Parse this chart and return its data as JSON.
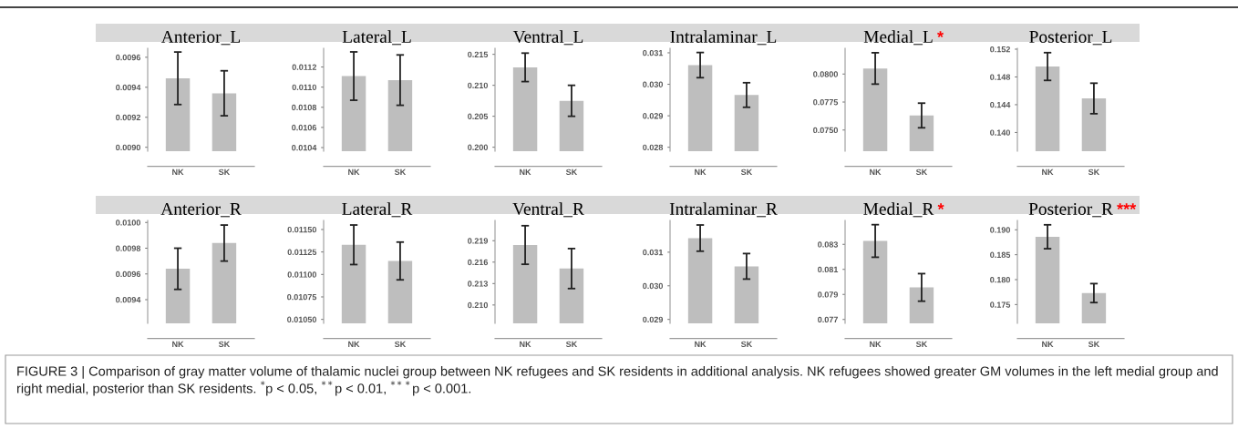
{
  "chart_data": [
    {
      "type": "bar",
      "title": "Anterior_L",
      "categories": [
        "NK",
        "SK"
      ],
      "values": [
        0.00946,
        0.00936
      ],
      "errors": [
        0.000175,
        0.00015
      ],
      "color": "#bebebe",
      "ylim": [
        0.008974,
        0.00966
      ],
      "yticks": [
        {
          "value": 0.009,
          "label": "0.0090"
        },
        0.0092,
        0.0094,
        0.0096
      ]
    },
    {
      "type": "bar",
      "title": "Lateral_L",
      "categories": [
        "NK",
        "SK"
      ],
      "values": [
        0.01111,
        0.01107
      ],
      "errors": [
        0.00024,
        0.00025
      ],
      "color": "#bebebe",
      "ylim": [
        0.010364,
        0.011386
      ],
      "yticks": [
        0.0104,
        0.0106,
        0.0108,
        {
          "value": 0.011,
          "label": "0.0110"
        },
        0.0112
      ]
    },
    {
      "type": "bar",
      "title": "Ventral_L",
      "categories": [
        "NK",
        "SK"
      ],
      "values": [
        0.2129,
        0.2075
      ],
      "errors": [
        0.0023,
        0.0025
      ],
      "color": "#bebebe",
      "ylim": [
        0.19936,
        0.21598
      ],
      "yticks": [
        {
          "value": 0.2,
          "label": "0.200"
        },
        0.205,
        {
          "value": 0.21,
          "label": "0.210"
        },
        0.215
      ]
    },
    {
      "type": "bar",
      "title": "Intralaminar_L",
      "categories": [
        "NK",
        "SK"
      ],
      "values": [
        0.03061,
        0.02966
      ],
      "errors": [
        0.0004,
        0.00039
      ],
      "color": "#bebebe",
      "ylim": [
        0.027875,
        0.031144
      ],
      "yticks": [
        0.028,
        0.029,
        {
          "value": 0.03,
          "label": "0.030"
        },
        0.031
      ]
    },
    {
      "type": "bar",
      "title": "Medial_L",
      "annotations": [
        "*"
      ],
      "categories": [
        "NK",
        "SK"
      ],
      "values": [
        0.0805,
        0.0763
      ],
      "errors": [
        0.0014,
        0.0011
      ],
      "color": "#bebebe",
      "ylim": [
        0.07311,
        0.0823
      ],
      "yticks": [
        {
          "value": 0.075,
          "label": "0.0750"
        },
        0.0775,
        {
          "value": 0.08,
          "label": "0.0800"
        }
      ]
    },
    {
      "type": "bar",
      "title": "Posterior_L",
      "categories": [
        "NK",
        "SK"
      ],
      "values": [
        0.1495,
        0.1449
      ],
      "errors": [
        0.002,
        0.0022
      ],
      "color": "#bebebe",
      "ylim": [
        0.1373,
        0.15213
      ],
      "yticks": [
        {
          "value": 0.14,
          "label": "0.140"
        },
        0.144,
        0.148,
        0.152
      ]
    },
    {
      "type": "bar",
      "title": "Anterior_R",
      "categories": [
        "NK",
        "SK"
      ],
      "values": [
        0.00964,
        0.00984
      ],
      "errors": [
        0.00016,
        0.00014
      ],
      "color": "#bebebe",
      "ylim": [
        0.009216,
        0.010016
      ],
      "yticks": [
        0.0094,
        0.0096,
        0.0098,
        {
          "value": 0.01,
          "label": "0.0100"
        }
      ]
    },
    {
      "type": "bar",
      "title": "Lateral_R",
      "categories": [
        "NK",
        "SK"
      ],
      "values": [
        0.01133,
        0.01115
      ],
      "errors": [
        0.00022,
        0.00021
      ],
      "color": "#bebebe",
      "ylim": [
        0.010456,
        0.011601
      ],
      "yticks": [
        {
          "value": 0.0105,
          "label": "0.01050"
        },
        0.01075,
        {
          "value": 0.011,
          "label": "0.01100"
        },
        0.01125,
        {
          "value": 0.0115,
          "label": "0.01150"
        }
      ]
    },
    {
      "type": "bar",
      "title": "Ventral_R",
      "categories": [
        "NK",
        "SK"
      ],
      "values": [
        0.2184,
        0.2151
      ],
      "errors": [
        0.0027,
        0.0028
      ],
      "color": "#bebebe",
      "ylim": [
        0.20743,
        0.22184
      ],
      "yticks": [
        {
          "value": 0.21,
          "label": "0.210"
        },
        0.213,
        0.216,
        0.219
      ]
    },
    {
      "type": "bar",
      "title": "Intralaminar_R",
      "categories": [
        "NK",
        "SK"
      ],
      "values": [
        0.03142,
        0.03058
      ],
      "errors": [
        0.00039,
        0.00038
      ],
      "color": "#bebebe",
      "ylim": [
        0.028883,
        0.031946
      ],
      "yticks": [
        0.029,
        {
          "value": 0.03,
          "label": "0.030"
        },
        0.031
      ]
    },
    {
      "type": "bar",
      "title": "Medial_R",
      "annotations": [
        "*"
      ],
      "categories": [
        "NK",
        "SK"
      ],
      "values": [
        0.08327,
        0.07956
      ],
      "errors": [
        0.0013,
        0.0011
      ],
      "color": "#bebebe",
      "ylim": [
        0.07669,
        0.08491
      ],
      "yticks": [
        0.077,
        0.079,
        0.081,
        0.083
      ]
    },
    {
      "type": "bar",
      "title": "Posterior_R",
      "annotations": [
        "***"
      ],
      "categories": [
        "NK",
        "SK"
      ],
      "values": [
        0.1886,
        0.1773
      ],
      "errors": [
        0.0024,
        0.0019
      ],
      "color": "#bebebe",
      "ylim": [
        0.17123,
        0.19188
      ],
      "yticks": [
        0.175,
        {
          "value": 0.18,
          "label": "0.180"
        },
        0.185,
        {
          "value": 0.19,
          "label": "0.190"
        }
      ]
    },
    {
      "type": "other",
      "annotations": [
        "FIGURE 3 | Comparison of gray matter volume of thalamic nuclei group between NK refugees and SK residents in additional analysis. NK refugees showed greater GM volumes in the left medial group and right medial, posterior than SK residents. $^{*}$p < 0.05, $^{**}$p < 0.01, $^{***}$p < 0.001."
      ]
    }
  ]
}
